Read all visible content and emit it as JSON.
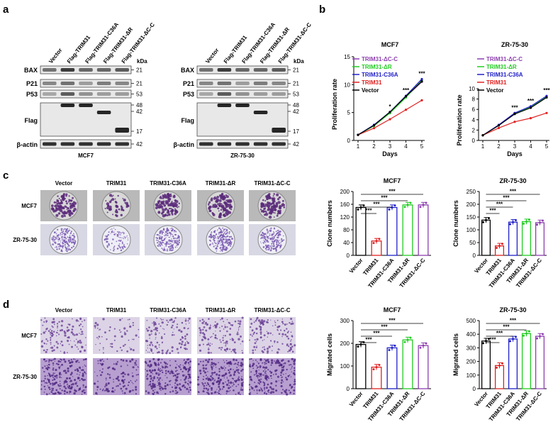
{
  "panel_letters": [
    "a",
    "b",
    "c",
    "d"
  ],
  "panel_a": {
    "kda_label": "kDa",
    "lane_labels": [
      "Vector",
      "Flag-TRIM31",
      "Flag-TRIM31-C36A",
      "Flag-TRIM31-ΔR",
      "Flag-TRIM31-ΔC-C"
    ],
    "blots": [
      {
        "name": "MCF7",
        "rows": [
          {
            "label": "BAX",
            "kda": [
              "21"
            ]
          },
          {
            "label": "P21",
            "kda": [
              "21"
            ]
          },
          {
            "label": "P53",
            "kda": [
              "53"
            ]
          },
          {
            "label": "Flag",
            "kda": [
              "48",
              "42",
              "17"
            ]
          },
          {
            "label": "β-actin",
            "kda": [
              "42"
            ]
          }
        ]
      },
      {
        "name": "ZR-75-30",
        "rows": [
          {
            "label": "BAX",
            "kda": [
              "21"
            ]
          },
          {
            "label": "P21",
            "kda": [
              "21"
            ]
          },
          {
            "label": "P53",
            "kda": [
              "53"
            ]
          },
          {
            "label": "Flag",
            "kda": [
              "48",
              "42",
              "17"
            ]
          },
          {
            "label": "β-actin",
            "kda": [
              "42"
            ]
          }
        ]
      }
    ]
  },
  "plate_columns": [
    "Vector",
    "TRIM31",
    "TRIM31-C36A",
    "TRIM31-ΔR",
    "TRIM31-ΔC-C"
  ],
  "plate_rows": [
    "MCF7",
    "ZR-75-30"
  ],
  "chart_data": [
    {
      "type": "line",
      "title": "MCF7",
      "xlabel": "Days",
      "ylabel": "Proliferation rate",
      "x": [
        1,
        2,
        3,
        4,
        5
      ],
      "xlim": [
        1,
        5
      ],
      "ylim": [
        0,
        15
      ],
      "yticks": [
        0,
        5,
        10,
        15
      ],
      "legend_position": "top-left",
      "series": [
        {
          "name": "TRIM31-ΔC-C",
          "color": "#8e3fb0",
          "values": [
            1.0,
            2.7,
            5.0,
            7.8,
            10.5
          ]
        },
        {
          "name": "TRIM31-ΔR",
          "color": "#22cc22",
          "values": [
            1.0,
            2.6,
            4.9,
            7.7,
            10.8
          ]
        },
        {
          "name": "TRIM31-C36A",
          "color": "#2020c8",
          "values": [
            1.0,
            2.8,
            5.1,
            8.0,
            11.0
          ]
        },
        {
          "name": "TRIM31",
          "color": "#e02020",
          "values": [
            1.0,
            2.2,
            3.8,
            5.5,
            7.2
          ]
        },
        {
          "name": "Vector",
          "color": "#000000",
          "values": [
            1.0,
            2.7,
            5.1,
            7.9,
            10.6
          ]
        }
      ],
      "annotations": [
        {
          "x": 3,
          "text": "*"
        },
        {
          "x": 4,
          "text": "***"
        },
        {
          "x": 5,
          "text": "***"
        }
      ]
    },
    {
      "type": "line",
      "title": "ZR-75-30",
      "xlabel": "Days",
      "ylabel": "Proliferation rate",
      "x": [
        1,
        2,
        3,
        4,
        5
      ],
      "xlim": [
        1,
        5
      ],
      "ylim": [
        0,
        10
      ],
      "yticks": [
        0,
        2,
        4,
        6,
        8,
        10
      ],
      "legend_position": "top-left",
      "series": [
        {
          "name": "TRIM31-ΔC-C",
          "color": "#8e3fb0",
          "values": [
            1.0,
            3.0,
            5.3,
            6.5,
            8.5
          ]
        },
        {
          "name": "TRIM31-ΔR",
          "color": "#22cc22",
          "values": [
            1.0,
            2.9,
            5.2,
            6.4,
            8.4
          ]
        },
        {
          "name": "TRIM31-C36A",
          "color": "#2020c8",
          "values": [
            1.0,
            3.0,
            5.3,
            6.6,
            8.6
          ]
        },
        {
          "name": "TRIM31",
          "color": "#e02020",
          "values": [
            1.0,
            2.4,
            3.6,
            4.3,
            5.3
          ]
        },
        {
          "name": "Vector",
          "color": "#000000",
          "values": [
            1.0,
            2.9,
            5.1,
            6.3,
            8.3
          ]
        }
      ],
      "annotations": [
        {
          "x": 3,
          "text": "***"
        },
        {
          "x": 4,
          "text": "***"
        },
        {
          "x": 5,
          "text": "***"
        }
      ]
    },
    {
      "type": "bar",
      "title": "MCF7",
      "ylabel": "Clone numbers",
      "categories": [
        "Vector",
        "TRIM31",
        "TRIM31-C36A",
        "TRIM31-ΔR",
        "TRIM31-ΔC-C"
      ],
      "values": [
        150,
        45,
        150,
        158,
        158
      ],
      "colors": [
        "#000000",
        "#e02020",
        "#2020c8",
        "#22cc22",
        "#8e3fb0"
      ],
      "ylim": [
        0,
        200
      ],
      "yticks": [
        0,
        40,
        80,
        120,
        160,
        200
      ],
      "significance": [
        {
          "to": 2,
          "text": "***"
        },
        {
          "to": 3,
          "text": "***"
        },
        {
          "to": 4,
          "text": "***"
        },
        {
          "to": 5,
          "text": "***"
        }
      ]
    },
    {
      "type": "bar",
      "title": "ZR-75-30",
      "ylabel": "Clone numbers",
      "categories": [
        "Vector",
        "TRIM31",
        "TRIM31-C36A",
        "TRIM31-ΔR",
        "TRIM31-ΔC-C"
      ],
      "values": [
        138,
        37,
        130,
        132,
        128
      ],
      "colors": [
        "#000000",
        "#e02020",
        "#2020c8",
        "#22cc22",
        "#8e3fb0"
      ],
      "ylim": [
        0,
        250
      ],
      "yticks": [
        0,
        50,
        100,
        150,
        200,
        250
      ],
      "significance": [
        {
          "to": 2,
          "text": "***"
        },
        {
          "to": 3,
          "text": "***"
        },
        {
          "to": 4,
          "text": "***"
        },
        {
          "to": 5,
          "text": "***"
        }
      ]
    },
    {
      "type": "bar",
      "title": "MCF7",
      "ylabel": "Migrated cells",
      "categories": [
        "Vector",
        "TRIM31",
        "TRIM31-C36A",
        "TRIM31-ΔR",
        "TRIM31-ΔC-C"
      ],
      "values": [
        195,
        95,
        180,
        215,
        190
      ],
      "colors": [
        "#000000",
        "#e02020",
        "#2020c8",
        "#22cc22",
        "#8e3fb0"
      ],
      "ylim": [
        0,
        300
      ],
      "yticks": [
        0,
        100,
        200,
        300
      ],
      "significance": [
        {
          "to": 2,
          "text": "***"
        },
        {
          "to": 3,
          "text": "***"
        },
        {
          "to": 4,
          "text": "***"
        },
        {
          "to": 5,
          "text": "***"
        }
      ]
    },
    {
      "type": "bar",
      "title": "ZR-75-30",
      "ylabel": "Migrated cells",
      "categories": [
        "Vector",
        "TRIM31",
        "TRIM31-C36A",
        "TRIM31-ΔR",
        "TRIM31-ΔC-C"
      ],
      "values": [
        350,
        170,
        365,
        405,
        385
      ],
      "colors": [
        "#000000",
        "#e02020",
        "#2020c8",
        "#22cc22",
        "#8e3fb0"
      ],
      "ylim": [
        0,
        500
      ],
      "yticks": [
        0,
        100,
        200,
        300,
        400,
        500
      ],
      "significance": [
        {
          "to": 2,
          "text": "***"
        },
        {
          "to": 3,
          "text": "***"
        },
        {
          "to": 4,
          "text": "***"
        },
        {
          "to": 5,
          "text": "***"
        }
      ]
    }
  ]
}
